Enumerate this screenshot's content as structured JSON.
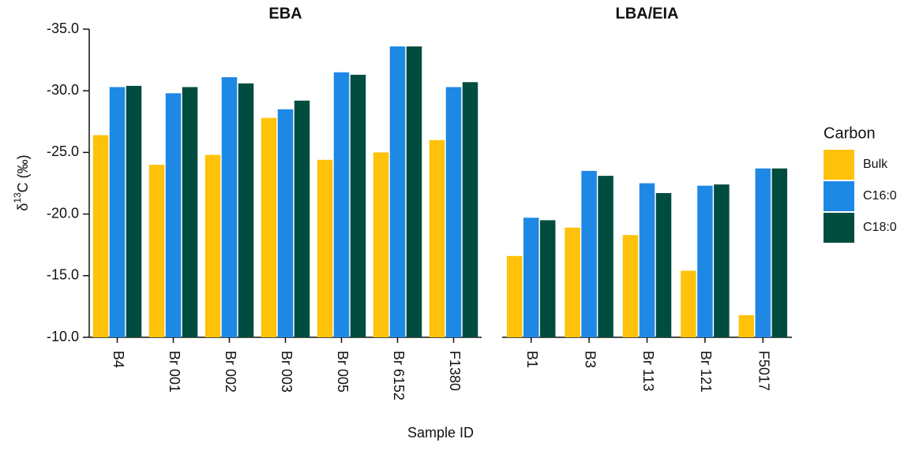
{
  "chart_data": {
    "type": "bar",
    "y_label": {
      "symbol": "δ",
      "superscript": "13",
      "rest": "C (‰)"
    },
    "x_label": "Sample ID",
    "legend_title": "Carbon",
    "ylim": [
      -10,
      -35
    ],
    "yticks": [
      {
        "value": -35,
        "label": "-35.0"
      },
      {
        "value": -30,
        "label": "-30.0"
      },
      {
        "value": -25,
        "label": "-25.0"
      },
      {
        "value": -20,
        "label": "-20.0"
      },
      {
        "value": -15,
        "label": "-15.0"
      },
      {
        "value": -10,
        "label": "-10.0"
      }
    ],
    "series": [
      {
        "name": "Bulk",
        "color": "#FFC20A"
      },
      {
        "name": "C16:0",
        "color": "#1E88E5"
      },
      {
        "name": "C18:0",
        "color": "#004D40"
      }
    ],
    "facets": [
      {
        "title": "EBA",
        "categories": [
          "B4",
          "Br 001",
          "Br 002",
          "Br 003",
          "Br 005",
          "Br 6152",
          "F1380"
        ],
        "series": [
          {
            "values": [
              -26.4,
              -24.0,
              -24.8,
              -27.8,
              -24.4,
              -25.0,
              -26.0
            ]
          },
          {
            "values": [
              -30.3,
              -29.8,
              -31.1,
              -28.5,
              -31.5,
              -33.6,
              -30.3
            ]
          },
          {
            "values": [
              -30.4,
              -30.3,
              -30.6,
              -29.2,
              -31.3,
              -33.6,
              -30.7
            ]
          }
        ]
      },
      {
        "title": "LBA/EIA",
        "categories": [
          "B1",
          "B3",
          "Br 113",
          "Br 121",
          "F5017"
        ],
        "series": [
          {
            "values": [
              -16.6,
              -18.9,
              -18.3,
              -15.4,
              -11.8
            ]
          },
          {
            "values": [
              -19.7,
              -23.5,
              -22.5,
              -22.3,
              -23.7
            ]
          },
          {
            "values": [
              -19.5,
              -23.1,
              -21.7,
              -22.4,
              -23.7
            ]
          }
        ]
      }
    ]
  }
}
